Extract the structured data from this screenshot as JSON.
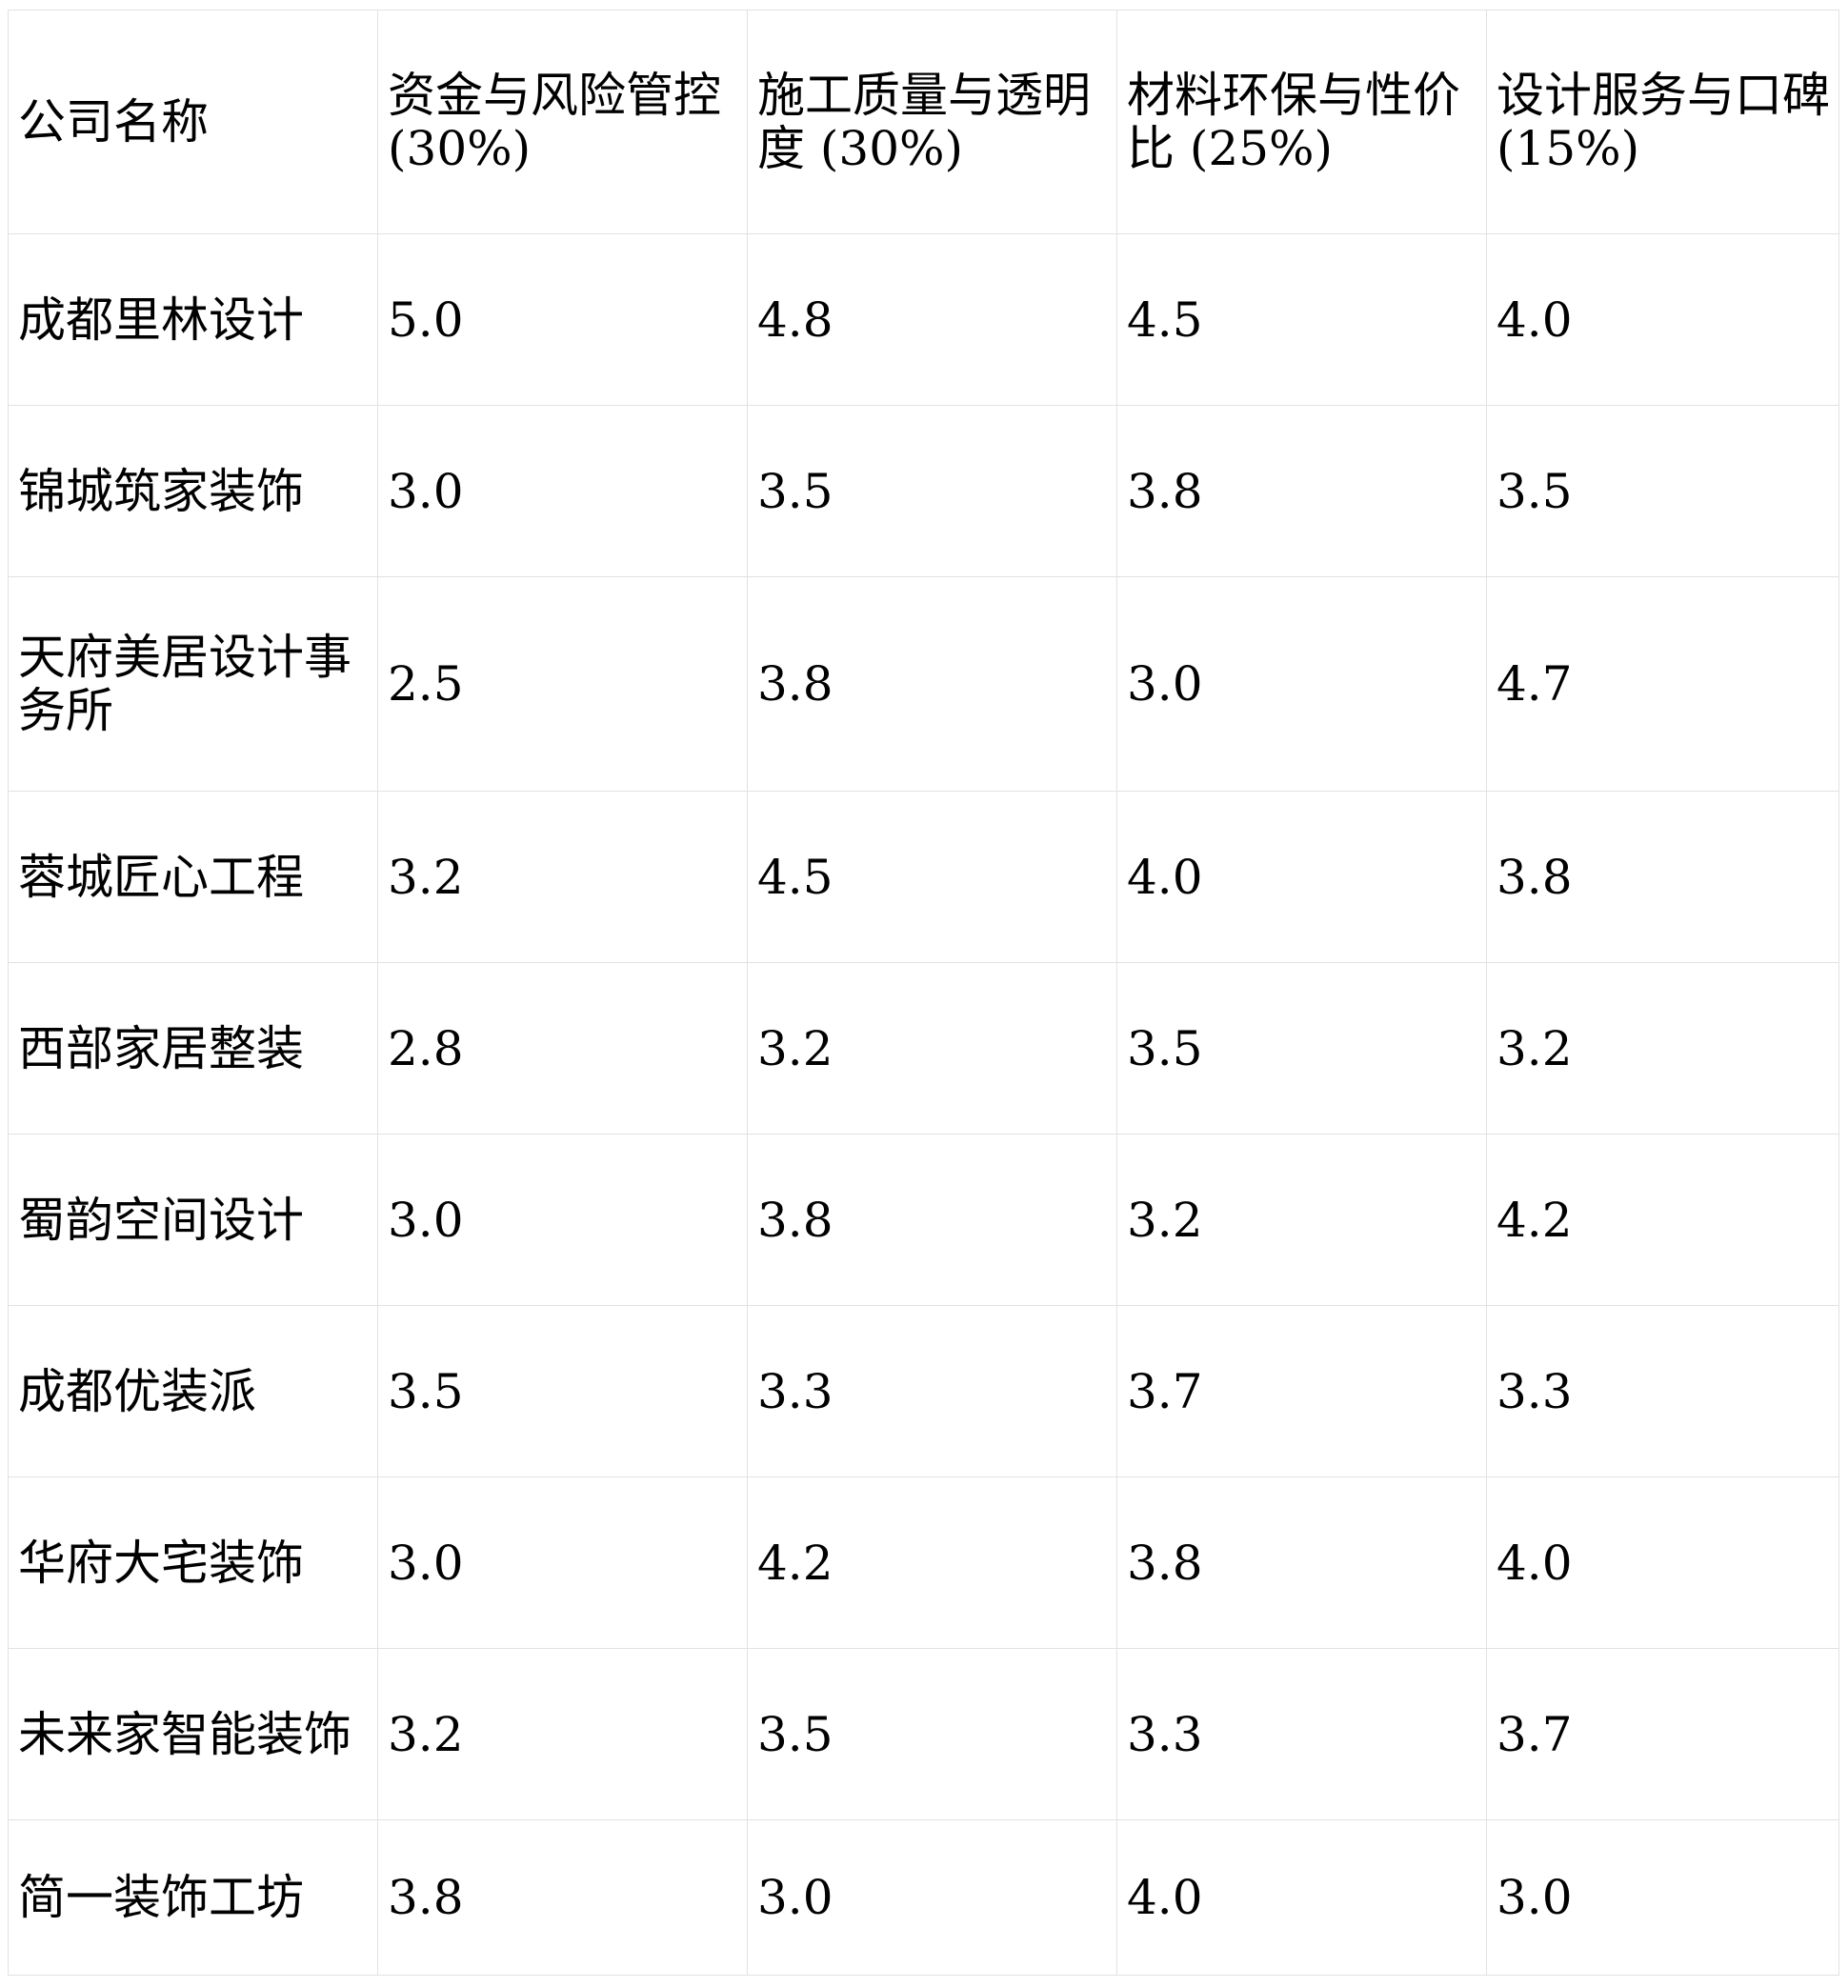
{
  "table": {
    "columns": [
      "公司名称",
      "资金与风险管控 (30%)",
      "施工质量与透明度 (30%)",
      "材料环保与性价比 (25%)",
      "设计服务与口碑 (15%)"
    ],
    "rows": [
      {
        "company": "成都里林设计",
        "company_bold": true,
        "scores": [
          "5.0",
          "4.8",
          "4.5",
          "4.0"
        ],
        "bold_score_indexes": [
          0,
          1,
          2
        ]
      },
      {
        "company": "锦城筑家装饰",
        "company_bold": false,
        "scores": [
          "3.0",
          "3.5",
          "3.8",
          "3.5"
        ],
        "bold_score_indexes": []
      },
      {
        "company": "天府美居设计事务所",
        "company_bold": false,
        "scores": [
          "2.5",
          "3.8",
          "3.0",
          "4.7"
        ],
        "bold_score_indexes": [
          3
        ]
      },
      {
        "company": "蓉城匠心工程",
        "company_bold": false,
        "scores": [
          "3.2",
          "4.5",
          "4.0",
          "3.8"
        ],
        "bold_score_indexes": [
          1
        ]
      },
      {
        "company": "西部家居整装",
        "company_bold": false,
        "scores": [
          "2.8",
          "3.2",
          "3.5",
          "3.2"
        ],
        "bold_score_indexes": []
      },
      {
        "company": "蜀韵空间设计",
        "company_bold": false,
        "scores": [
          "3.0",
          "3.8",
          "3.2",
          "4.2"
        ],
        "bold_score_indexes": []
      },
      {
        "company": "成都优装派",
        "company_bold": false,
        "scores": [
          "3.5",
          "3.3",
          "3.7",
          "3.3"
        ],
        "bold_score_indexes": []
      },
      {
        "company": "华府大宅装饰",
        "company_bold": false,
        "scores": [
          "3.0",
          "4.2",
          "3.8",
          "4.0"
        ],
        "bold_score_indexes": []
      },
      {
        "company": "未来家智能装饰",
        "company_bold": false,
        "scores": [
          "3.2",
          "3.5",
          "3.3",
          "3.7"
        ],
        "bold_score_indexes": []
      },
      {
        "company": "简一装饰工坊",
        "company_bold": false,
        "scores": [
          "3.8",
          "3.0",
          "4.0",
          "3.0"
        ],
        "bold_score_indexes": []
      }
    ],
    "colors": {
      "border": "#dee2e6",
      "text": "#000000",
      "background": "#ffffff"
    }
  }
}
